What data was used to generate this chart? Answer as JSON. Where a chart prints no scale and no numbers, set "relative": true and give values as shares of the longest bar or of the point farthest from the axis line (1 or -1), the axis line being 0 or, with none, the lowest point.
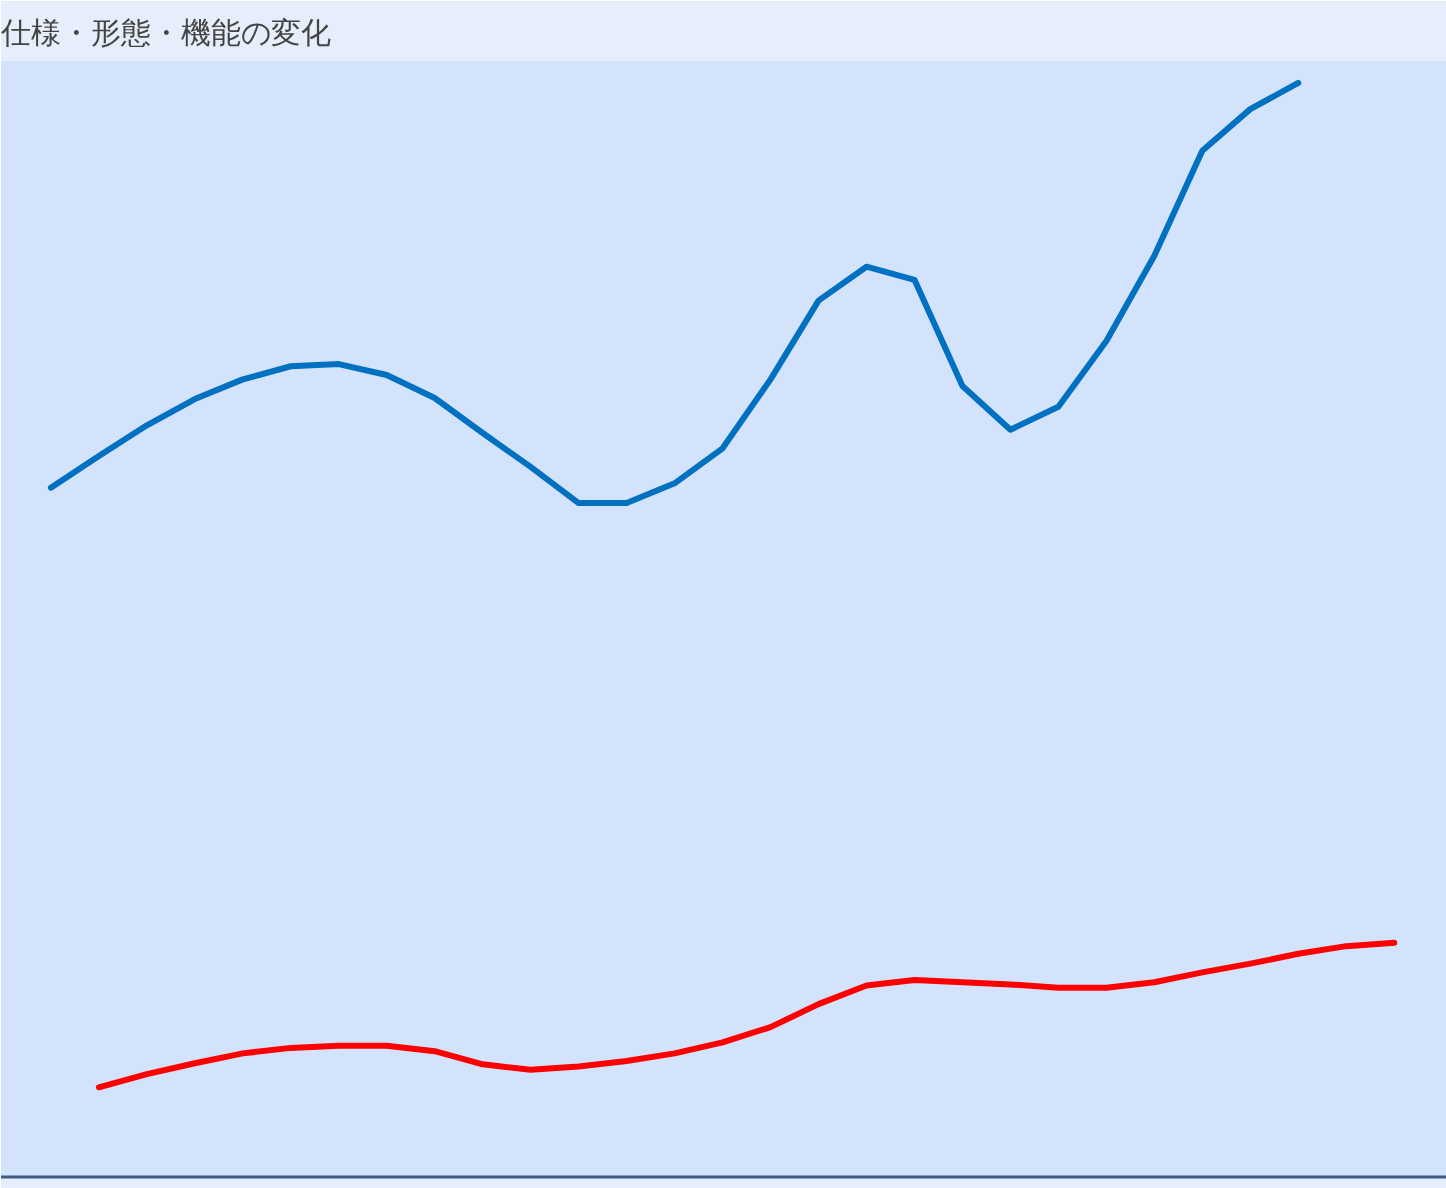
{
  "chart_data": {
    "type": "line",
    "title": "仕様・形態・機能の変化",
    "relative": true,
    "categories": [
      null,
      null,
      null,
      null,
      null,
      null,
      null,
      null,
      null,
      null,
      null,
      null,
      null,
      null,
      null,
      null,
      null,
      null,
      null,
      null,
      null,
      null,
      null,
      null,
      null,
      null,
      null,
      null,
      null
    ],
    "series": [
      {
        "color": "#0070c0",
        "values": [
          0.63,
          0.659,
          0.687,
          0.711,
          0.729,
          0.741,
          0.743,
          0.733,
          0.712,
          0.68,
          0.649,
          0.616,
          0.616,
          0.634,
          0.666,
          0.729,
          0.801,
          0.832,
          0.82,
          0.723,
          0.683,
          0.704,
          0.764,
          0.842,
          0.938,
          0.976,
          1,
          null,
          null
        ]
      },
      {
        "color": "#ff0000",
        "values": [
          null,
          0.082,
          0.094,
          0.104,
          0.113,
          0.118,
          0.12,
          0.12,
          0.115,
          0.103,
          0.098,
          0.101,
          0.106,
          0.113,
          0.123,
          0.137,
          0.158,
          0.175,
          0.18,
          0.178,
          0.176,
          0.173,
          0.173,
          0.178,
          0.187,
          0.195,
          0.204,
          0.211,
          0.214
        ]
      }
    ]
  }
}
